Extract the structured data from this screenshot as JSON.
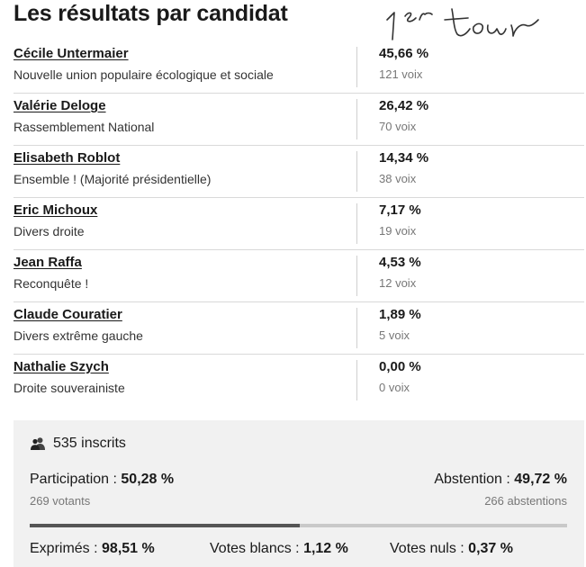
{
  "title": "Les résultats par candidat",
  "handwritten_note": "1er tour",
  "candidates": [
    {
      "name": "Cécile Untermaier",
      "party": "Nouvelle union populaire écologique et sociale",
      "percent": "45,66 %",
      "votes": "121 voix"
    },
    {
      "name": "Valérie Deloge",
      "party": "Rassemblement National",
      "percent": "26,42 %",
      "votes": "70 voix"
    },
    {
      "name": "Elisabeth Roblot",
      "party": "Ensemble ! (Majorité présidentielle)",
      "percent": "14,34 %",
      "votes": "38 voix"
    },
    {
      "name": "Eric Michoux",
      "party": "Divers droite",
      "percent": "7,17 %",
      "votes": "19 voix"
    },
    {
      "name": "Jean Raffa",
      "party": "Reconquête !",
      "percent": "4,53 %",
      "votes": "12 voix"
    },
    {
      "name": "Claude Couratier",
      "party": "Divers extrême gauche",
      "percent": "1,89 %",
      "votes": "5 voix"
    },
    {
      "name": "Nathalie Szych",
      "party": "Droite souverainiste",
      "percent": "0,00 %",
      "votes": "0 voix"
    }
  ],
  "summary": {
    "inscrits_icon": "people-icon",
    "inscrits": "535 inscrits",
    "participation_label": "Participation : ",
    "participation_value": "50,28 %",
    "votants": "269 votants",
    "abstention_label": "Abstention : ",
    "abstention_value": "49,72 %",
    "abstentions": "266 abstentions",
    "participation_fraction": 0.5028,
    "exprimes_label": "Exprimés : ",
    "exprimes_value": "98,51 %",
    "blancs_label": "Votes blancs : ",
    "blancs_value": "1,12 %",
    "nuls_label": "Votes nuls : ",
    "nuls_value": "0,37 %"
  }
}
